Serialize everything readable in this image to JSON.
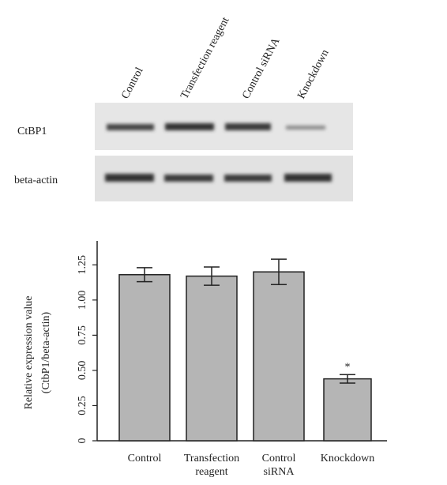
{
  "blot": {
    "lanes": [
      "Control",
      "Transfection reagent",
      "Control siRNA",
      "Knockdown"
    ],
    "rows": [
      "CtBP1",
      "beta-actin"
    ]
  },
  "chart_data": {
    "type": "bar",
    "categories": [
      "Control",
      "Transfection reagent",
      "Control siRNA",
      "Knockdown"
    ],
    "values": [
      1.18,
      1.17,
      1.2,
      0.44
    ],
    "errors": [
      0.05,
      0.065,
      0.09,
      0.03
    ],
    "annotations": [
      null,
      null,
      null,
      "*"
    ],
    "color": "#b5b5b5",
    "ylabel": [
      "Relative expression value",
      "(CtbP1/beta-actin)"
    ],
    "ylim": [
      0,
      1.42
    ],
    "yticks": [
      0,
      0.25,
      {
        "value": 0.5,
        "label": "0.50"
      },
      0.75,
      {
        "value": 1,
        "label": "1.00"
      },
      1.25
    ]
  }
}
